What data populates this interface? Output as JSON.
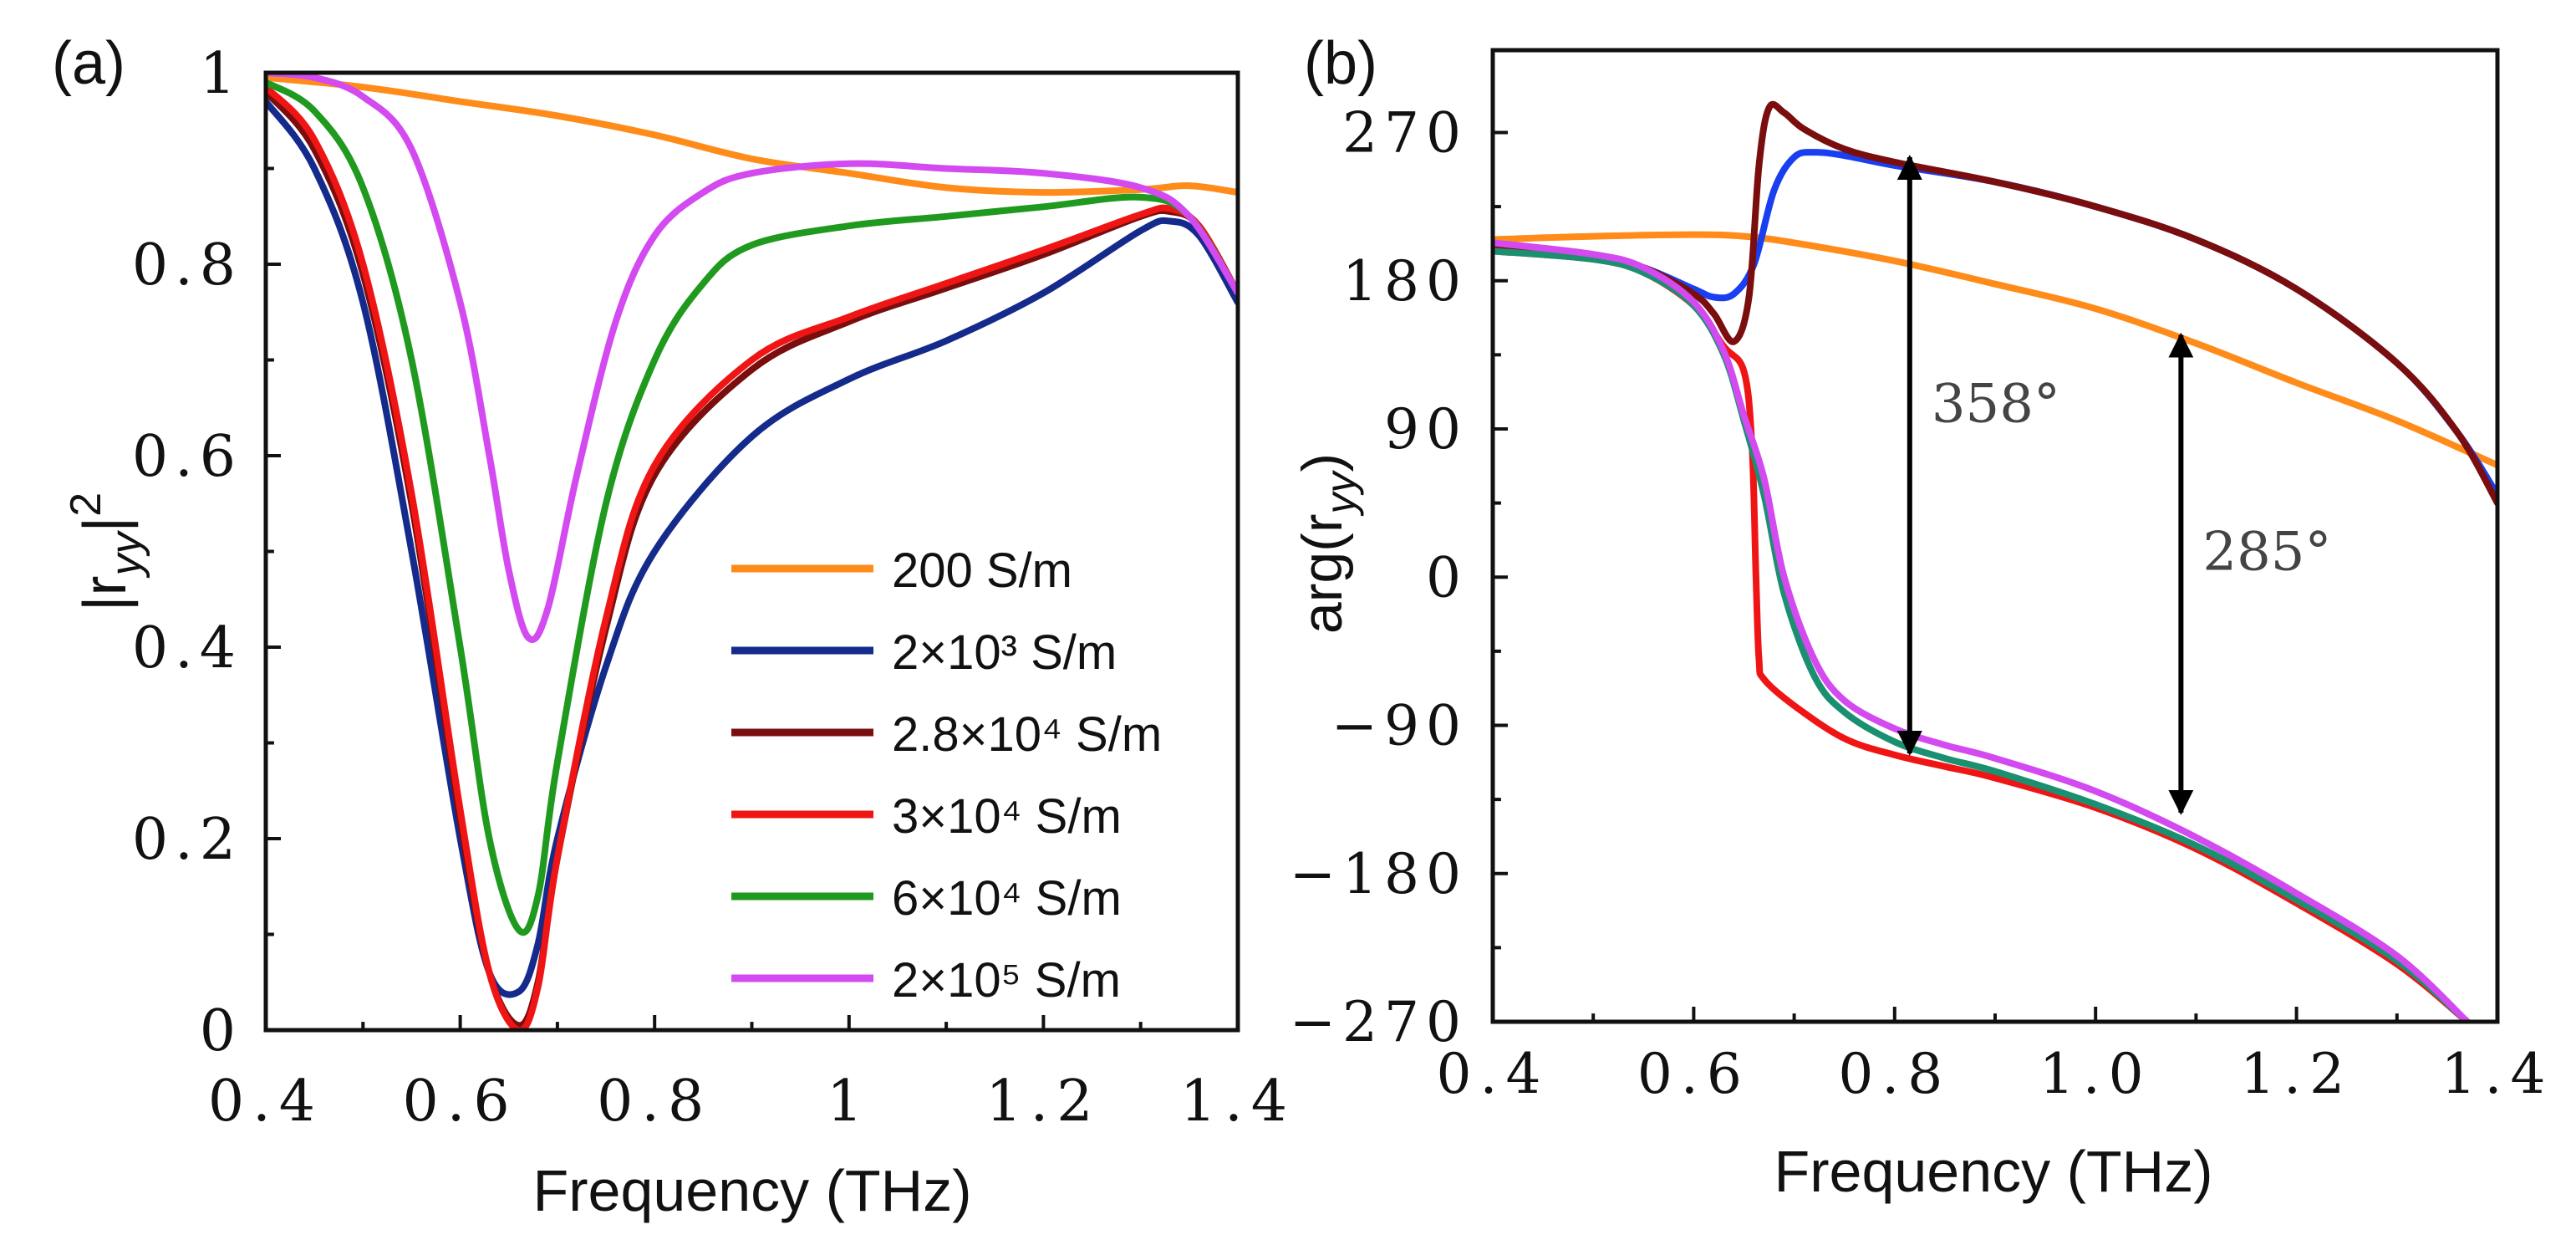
{
  "chart_data": [
    {
      "panel_label": "(a)",
      "type": "line",
      "xlabel": "Frequency (THz)",
      "ylabel": {
        "base": "|r",
        "sub": "yy",
        "tail": "|",
        "sup": "2"
      },
      "xlim": [
        0.4,
        1.4
      ],
      "ylim": [
        0,
        1
      ],
      "xticks": [
        0.4,
        0.6,
        0.8,
        1.0,
        1.2,
        1.4
      ],
      "xtick_labels": [
        "0.4",
        "0.6",
        "0.8",
        "1",
        "1.2",
        "1.4"
      ],
      "yticks": [
        0,
        0.2,
        0.4,
        0.6,
        0.8,
        1.0
      ],
      "ytick_labels": [
        "0",
        "0.2",
        "0.4",
        "0.6",
        "0.8",
        "1"
      ],
      "grid": false,
      "legend_position": "bottom-right",
      "series": [
        {
          "name": "200 S/m",
          "color": "#ff8c1a",
          "x": [
            0.4,
            0.5,
            0.6,
            0.7,
            0.8,
            0.9,
            1.0,
            1.1,
            1.2,
            1.3,
            1.35,
            1.4
          ],
          "y": [
            0.995,
            0.985,
            0.97,
            0.955,
            0.935,
            0.91,
            0.895,
            0.88,
            0.875,
            0.878,
            0.882,
            0.875
          ]
        },
        {
          "name": "2×10³ S/m",
          "color": "#142b8c",
          "x": [
            0.4,
            0.45,
            0.5,
            0.55,
            0.6,
            0.63,
            0.66,
            0.68,
            0.7,
            0.75,
            0.8,
            0.9,
            1.0,
            1.1,
            1.2,
            1.3,
            1.33,
            1.36,
            1.4
          ],
          "y": [
            0.97,
            0.9,
            0.76,
            0.5,
            0.2,
            0.06,
            0.04,
            0.09,
            0.2,
            0.38,
            0.5,
            0.62,
            0.68,
            0.72,
            0.77,
            0.835,
            0.845,
            0.83,
            0.76
          ]
        },
        {
          "name": "2.8×10⁴ S/m",
          "color": "#7a0e0e",
          "x": [
            0.4,
            0.45,
            0.5,
            0.55,
            0.6,
            0.63,
            0.66,
            0.68,
            0.7,
            0.75,
            0.8,
            0.9,
            1.0,
            1.1,
            1.2,
            1.3,
            1.33,
            1.36,
            1.4
          ],
          "y": [
            0.98,
            0.92,
            0.79,
            0.55,
            0.22,
            0.06,
            0.005,
            0.05,
            0.18,
            0.42,
            0.58,
            0.69,
            0.74,
            0.775,
            0.81,
            0.85,
            0.855,
            0.84,
            0.77
          ]
        },
        {
          "name": "3×10⁴ S/m",
          "color": "#f01515",
          "x": [
            0.4,
            0.45,
            0.5,
            0.55,
            0.6,
            0.63,
            0.66,
            0.68,
            0.7,
            0.75,
            0.8,
            0.9,
            1.0,
            1.1,
            1.2,
            1.3,
            1.33,
            1.36,
            1.4
          ],
          "y": [
            0.985,
            0.93,
            0.8,
            0.56,
            0.23,
            0.06,
            0.0,
            0.045,
            0.18,
            0.43,
            0.59,
            0.7,
            0.745,
            0.78,
            0.815,
            0.852,
            0.858,
            0.84,
            0.77
          ]
        },
        {
          "name": "6×10⁴ S/m",
          "color": "#1f9a1f",
          "x": [
            0.4,
            0.45,
            0.5,
            0.55,
            0.6,
            0.63,
            0.66,
            0.68,
            0.7,
            0.75,
            0.8,
            0.85,
            0.9,
            1.0,
            1.1,
            1.2,
            1.3,
            1.35,
            1.4
          ],
          "y": [
            0.99,
            0.96,
            0.88,
            0.7,
            0.4,
            0.2,
            0.105,
            0.14,
            0.28,
            0.55,
            0.7,
            0.78,
            0.82,
            0.84,
            0.85,
            0.86,
            0.87,
            0.85,
            0.77
          ]
        },
        {
          "name": "2×10⁵ S/m",
          "color": "#d34af0",
          "x": [
            0.4,
            0.45,
            0.5,
            0.55,
            0.6,
            0.63,
            0.65,
            0.67,
            0.69,
            0.72,
            0.76,
            0.8,
            0.85,
            0.9,
            1.0,
            1.1,
            1.2,
            1.3,
            1.35,
            1.4
          ],
          "y": [
            1.0,
            0.995,
            0.975,
            0.92,
            0.76,
            0.6,
            0.48,
            0.41,
            0.44,
            0.58,
            0.74,
            0.83,
            0.875,
            0.895,
            0.905,
            0.9,
            0.895,
            0.88,
            0.85,
            0.77
          ]
        }
      ]
    },
    {
      "panel_label": "(b)",
      "type": "line",
      "xlabel": "Frequency (THz)",
      "ylabel": {
        "base": "arg(r",
        "sub": "yy",
        "tail": ")"
      },
      "xlim": [
        0.4,
        1.4
      ],
      "ylim": [
        -270,
        320
      ],
      "xticks": [
        0.4,
        0.6,
        0.8,
        1.0,
        1.2,
        1.4
      ],
      "xtick_labels": [
        "0.4",
        "0.6",
        "0.8",
        "1.0",
        "1.2",
        "1.4"
      ],
      "yticks": [
        -270,
        -180,
        -90,
        0,
        90,
        180,
        270
      ],
      "ytick_labels": [
        "−270",
        "−180",
        "−90",
        "0",
        "90",
        "180",
        "270"
      ],
      "grid": false,
      "series": [
        {
          "name": "200 S/m",
          "color": "#ff8c1a",
          "x": [
            0.4,
            0.5,
            0.6,
            0.65,
            0.7,
            0.8,
            0.9,
            1.0,
            1.1,
            1.2,
            1.3,
            1.4
          ],
          "y": [
            205,
            207,
            208,
            207,
            203,
            192,
            178,
            163,
            142,
            118,
            95,
            68
          ]
        },
        {
          "name": "2×10³ S/m",
          "color": "#1a3ff0",
          "x": [
            0.4,
            0.5,
            0.55,
            0.6,
            0.62,
            0.64,
            0.66,
            0.68,
            0.7,
            0.72,
            0.75,
            0.8,
            0.9,
            1.0,
            1.1,
            1.2,
            1.3,
            1.36,
            1.4
          ],
          "y": [
            200,
            195,
            188,
            175,
            170,
            172,
            190,
            235,
            255,
            258,
            256,
            250,
            240,
            225,
            205,
            175,
            130,
            88,
            50
          ]
        },
        {
          "name": "2.8×10⁴ S/m",
          "color": "#7a0e0e",
          "x": [
            0.4,
            0.5,
            0.55,
            0.6,
            0.62,
            0.64,
            0.655,
            0.665,
            0.675,
            0.69,
            0.71,
            0.75,
            0.8,
            0.9,
            1.0,
            1.1,
            1.2,
            1.3,
            1.36,
            1.4
          ],
          "y": [
            200,
            195,
            188,
            172,
            160,
            143,
            170,
            250,
            285,
            282,
            272,
            260,
            252,
            240,
            225,
            205,
            175,
            130,
            88,
            45
          ]
        },
        {
          "name": "3×10⁴ S/m",
          "color": "#f01515",
          "x": [
            0.4,
            0.5,
            0.55,
            0.6,
            0.63,
            0.65,
            0.658,
            0.662,
            0.665,
            0.67,
            0.7,
            0.75,
            0.8,
            0.85,
            0.9,
            1.0,
            1.1,
            1.2,
            1.3,
            1.37
          ],
          "y": [
            198,
            193,
            185,
            165,
            140,
            125,
            80,
            0,
            -50,
            -62,
            -78,
            -98,
            -108,
            -115,
            -122,
            -140,
            -165,
            -198,
            -235,
            -270
          ]
        },
        {
          "name": "6×10⁴ S/m",
          "color": "#1a9070",
          "x": [
            0.4,
            0.5,
            0.55,
            0.6,
            0.63,
            0.65,
            0.67,
            0.69,
            0.72,
            0.75,
            0.8,
            0.85,
            0.9,
            1.0,
            1.1,
            1.2,
            1.3,
            1.37
          ],
          "y": [
            198,
            193,
            185,
            165,
            135,
            95,
            50,
            -10,
            -60,
            -82,
            -100,
            -110,
            -118,
            -138,
            -163,
            -196,
            -233,
            -270
          ]
        },
        {
          "name": "2×10⁵ S/m",
          "color": "#d34af0",
          "x": [
            0.4,
            0.5,
            0.55,
            0.6,
            0.63,
            0.65,
            0.67,
            0.69,
            0.72,
            0.75,
            0.8,
            0.85,
            0.9,
            1.0,
            1.1,
            1.2,
            1.3,
            1.37
          ],
          "y": [
            203,
            196,
            188,
            167,
            137,
            98,
            60,
            0,
            -50,
            -75,
            -92,
            -102,
            -110,
            -130,
            -158,
            -192,
            -230,
            -270
          ]
        }
      ],
      "annotations": [
        {
          "text": "358°",
          "arrow_x": 0.815,
          "from": 255,
          "to": -107
        },
        {
          "text": "285°",
          "arrow_x": 1.085,
          "from": 147,
          "to": -143
        }
      ]
    }
  ]
}
